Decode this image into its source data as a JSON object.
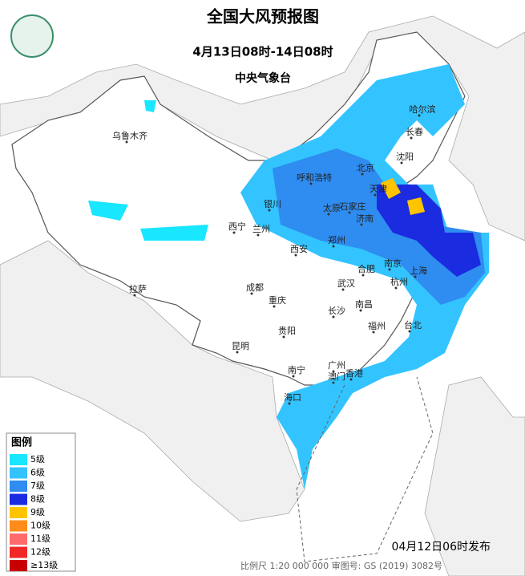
{
  "header": {
    "title": "全国大风预报图",
    "period": "4月13日08时-14日08时",
    "agency": "中央气象台"
  },
  "legend": {
    "title": "图例",
    "items": [
      {
        "label": "5级",
        "color": "#19e6ff"
      },
      {
        "label": "6级",
        "color": "#33c4ff"
      },
      {
        "label": "7级",
        "color": "#2f8cf0"
      },
      {
        "label": "8级",
        "color": "#1a2be0"
      },
      {
        "label": "9级",
        "color": "#ffc400"
      },
      {
        "label": "10级",
        "color": "#ff8c1a"
      },
      {
        "label": "11级",
        "color": "#ff6a6a"
      },
      {
        "label": "12级",
        "color": "#f02828"
      },
      {
        "label": "≥13级",
        "color": "#c80000"
      }
    ]
  },
  "cities": [
    "乌鲁木齐",
    "哈尔滨",
    "长春",
    "沈阳",
    "北京",
    "天津",
    "呼和浩特",
    "银川",
    "太原",
    "石家庄",
    "济南",
    "西宁",
    "兰州",
    "郑州",
    "西安",
    "合肥",
    "南京",
    "上海",
    "拉萨",
    "成都",
    "武汉",
    "杭州",
    "重庆",
    "长沙",
    "南昌",
    "福州",
    "台北",
    "贵阳",
    "昆明",
    "广州",
    "南宁",
    "澳门",
    "香港",
    "海口"
  ],
  "footer": {
    "issued": "04月12日06时发布",
    "scale": "比例尺 1:20 000 000  审图号: GS (2019) 3082号"
  }
}
